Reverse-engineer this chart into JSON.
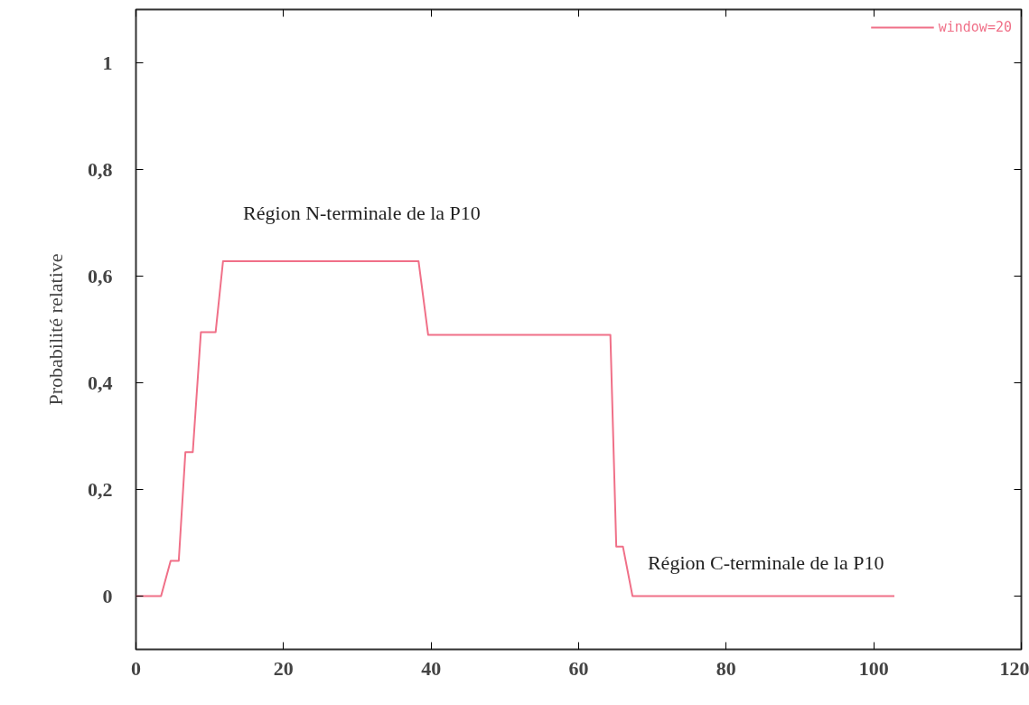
{
  "chart_data": {
    "type": "line",
    "ylabel": "Probabilité relative",
    "x": [
      0,
      3.4,
      4.7,
      5.8,
      6.7,
      7.7,
      8.8,
      10.8,
      11.8,
      38.3,
      39.6,
      64.3,
      65.1,
      66,
      67.3,
      102.8
    ],
    "series": [
      {
        "name": "window=20",
        "color": "#f07088",
        "values": [
          0,
          0,
          0.066,
          0.066,
          0.27,
          0.27,
          0.495,
          0.495,
          0.628,
          0.628,
          0.49,
          0.49,
          0.093,
          0.093,
          0,
          0
        ]
      }
    ],
    "xlim": [
      0,
      120
    ],
    "xticks": [
      0,
      20,
      40,
      60,
      80,
      100,
      120
    ],
    "ylim": [
      -0.1,
      1.1
    ],
    "yticks": [
      {
        "value": 0,
        "label": "0"
      },
      {
        "value": 0.2,
        "label": "0,2"
      },
      {
        "value": 0.4,
        "label": "0,4"
      },
      {
        "value": 0.6,
        "label": "0,6"
      },
      {
        "value": 0.8,
        "label": "0,8"
      },
      {
        "value": 1,
        "label": "1"
      }
    ],
    "annotations": [
      "Région N-terminale de la P10",
      "Région C-terminale de la  P10"
    ],
    "grid": false,
    "legend": "top right",
    "marker": "none",
    "line_style": "solid"
  }
}
